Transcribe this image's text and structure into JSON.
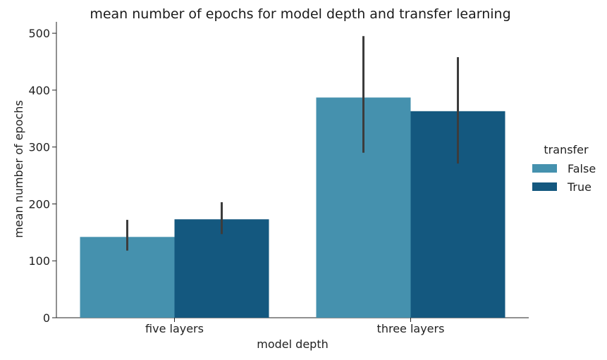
{
  "chart_data": {
    "type": "bar",
    "title": "mean number of epochs for model depth and transfer learning",
    "xlabel": "model depth",
    "ylabel": "mean number of epochs",
    "categories": [
      "five layers",
      "three layers"
    ],
    "ylim": [
      0,
      520
    ],
    "yticks": [
      0,
      100,
      200,
      300,
      400,
      500
    ],
    "grid": false,
    "legend": {
      "title": "transfer",
      "placement": "right"
    },
    "series": [
      {
        "name": "False",
        "color": "#4591ae",
        "values": [
          142,
          387
        ],
        "error_low": [
          118,
          290
        ],
        "error_high": [
          172,
          495
        ]
      },
      {
        "name": "True",
        "color": "#14587f",
        "values": [
          173,
          363
        ],
        "error_low": [
          147,
          271
        ],
        "error_high": [
          203,
          458
        ]
      }
    ],
    "error_bar_color": "#3c3c3c"
  }
}
